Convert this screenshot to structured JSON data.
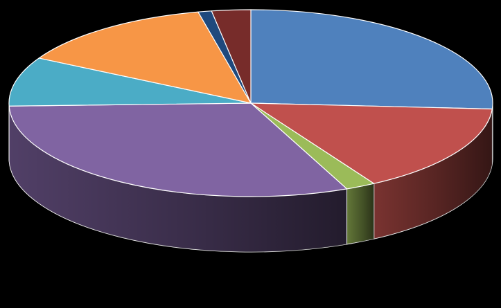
{
  "chart_data": {
    "type": "pie",
    "style": "3d",
    "start_angle_deg": 90,
    "direction": "clockwise",
    "background": "#000000",
    "slice_border": "#ffffff",
    "slices": [
      {
        "value": 26.0,
        "color": "#4F81BD"
      },
      {
        "value": 15.5,
        "color": "#C0504D"
      },
      {
        "value": 2.0,
        "color": "#9BBB59"
      },
      {
        "value": 31.0,
        "color": "#8064A2"
      },
      {
        "value": 8.5,
        "color": "#4BACC6"
      },
      {
        "value": 13.5,
        "color": "#F79646"
      },
      {
        "value": 0.9,
        "color": "#1F497D"
      },
      {
        "value": 2.6,
        "color": "#772C2A"
      }
    ]
  }
}
